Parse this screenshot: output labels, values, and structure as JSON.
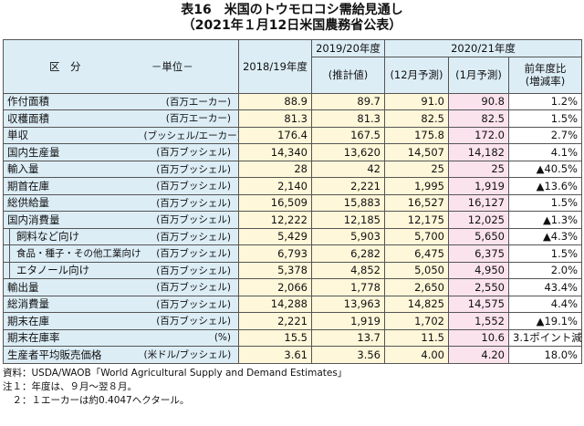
{
  "header": {
    "title": "表16　米国のトウモロコシ需給見通し",
    "subtitle": "（2021年１月12日米国農務省公表）"
  },
  "table": {
    "header": {
      "category": "区　分",
      "unit": "－単位－",
      "y2018": "2018/19年度",
      "y2019": "2019/20年度",
      "y2020": "2020/21年度",
      "sub": [
        "(推計値)",
        "(12月予測)",
        "(1月予測)"
      ],
      "change": [
        "前年度比",
        "(増減率)"
      ]
    },
    "rows": [
      [
        "作付面積",
        "(百万エーカー)",
        "88.9",
        "89.7",
        "91.0",
        "90.8",
        "1.2%"
      ],
      [
        "収穫面積",
        "(百万エーカー)",
        "81.3",
        "81.3",
        "82.5",
        "82.5",
        "1.5%"
      ],
      [
        "単収",
        "(ブッシェル/エーカー)",
        "176.4",
        "167.5",
        "175.8",
        "172.0",
        "2.7%"
      ],
      [
        "国内生産量",
        "(百万ブッシェル)",
        "14,340",
        "13,620",
        "14,507",
        "14,182",
        "4.1%"
      ],
      [
        "輸入量",
        "(百万ブッシェル)",
        "28",
        "42",
        "25",
        "25",
        "▲40.5%"
      ],
      [
        "期首在庫",
        "(百万ブッシェル)",
        "2,140",
        "2,221",
        "1,995",
        "1,919",
        "▲13.6%"
      ],
      [
        "総供給量",
        "(百万ブッシェル)",
        "16,509",
        "15,883",
        "16,527",
        "16,127",
        "1.5%"
      ],
      [
        "国内消費量",
        "(百万ブッシェル)",
        "12,222",
        "12,185",
        "12,175",
        "12,025",
        "▲1.3%"
      ],
      [
        "飼料など向け",
        "(百万ブッシェル)",
        "5,429",
        "5,903",
        "5,700",
        "5,650",
        "▲4.3%"
      ],
      [
        "食品・種子・その他工業向け",
        "(百万ブッシェル)",
        "6,793",
        "6,282",
        "6,475",
        "6,375",
        "1.5%"
      ],
      [
        "エタノール向け",
        "(百万ブッシェル)",
        "5,378",
        "4,852",
        "5,050",
        "4,950",
        "2.0%"
      ],
      [
        "輸出量",
        "(百万ブッシェル)",
        "2,066",
        "1,778",
        "2,650",
        "2,550",
        "43.4%"
      ],
      [
        "総消費量",
        "(百万ブッシェル)",
        "14,288",
        "13,963",
        "14,825",
        "14,575",
        "4.4%"
      ],
      [
        "期末在庫",
        "(百万ブッシェル)",
        "2,221",
        "1,919",
        "1,702",
        "1,552",
        "▲19.1%"
      ],
      [
        "期末在庫率",
        "(%)",
        "15.5",
        "13.7",
        "11.5",
        "10.6",
        "3.1ポイント減"
      ],
      [
        "生産者平均販売価格",
        "(米ドル/ブッシェル)",
        "3.61",
        "3.56",
        "4.00",
        "4.20",
        "18.0%"
      ]
    ]
  },
  "notes": [
    "資料：USDA/WAOB「World Agricultural Supply and Demand Estimates」",
    "注１：年度は、９月～翌８月。",
    "　２：１エーカーは約0.4047ヘクタール。"
  ]
}
